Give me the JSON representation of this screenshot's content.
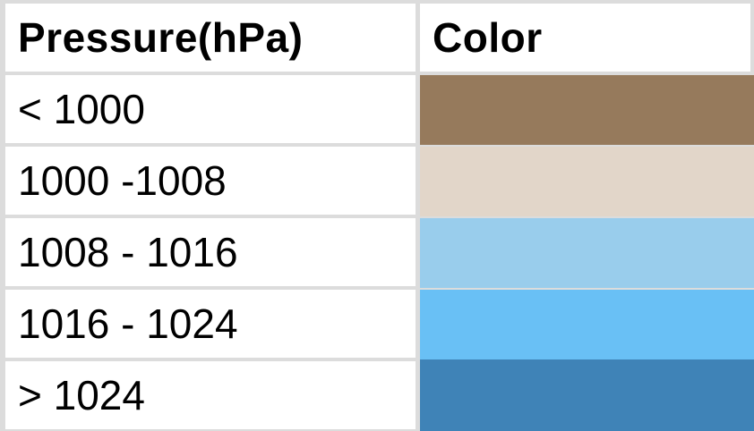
{
  "table": {
    "headers": {
      "pressure": "Pressure(hPa)",
      "color": "Color"
    },
    "rows": [
      {
        "range": "< 1000",
        "swatch_color": "#967a5c"
      },
      {
        "range": "1000 -1008",
        "swatch_color": "#e2d6c9"
      },
      {
        "range": "1008 - 1016",
        "swatch_color": "#99cdec"
      },
      {
        "range": "1016 - 1024",
        "swatch_color": "#69c0f5"
      },
      {
        "range": "> 1024",
        "swatch_color": "#3f83b7"
      }
    ]
  }
}
